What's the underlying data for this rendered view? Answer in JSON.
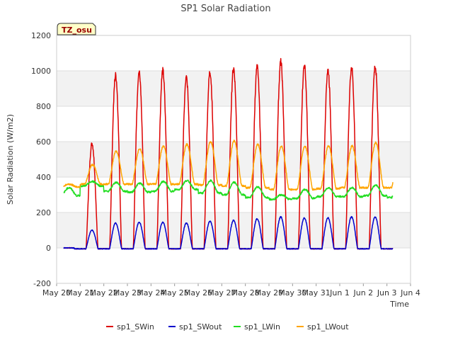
{
  "chart_data": {
    "type": "line",
    "title": "SP1 Solar Radiation",
    "xlabel": "Time",
    "ylabel": "Solar Radiation (W/m2)",
    "ylim": [
      -200,
      1200
    ],
    "yticks": [
      -200,
      0,
      200,
      400,
      600,
      800,
      1000,
      1200
    ],
    "xlim": [
      0,
      15
    ],
    "xticks": [
      0,
      1,
      2,
      3,
      4,
      5,
      6,
      7,
      8,
      9,
      10,
      11,
      12,
      13,
      14,
      15
    ],
    "xtick_labels": [
      "May 20",
      "May 21",
      "May 22",
      "May 23",
      "May 24",
      "May 25",
      "May 26",
      "May 27",
      "May 28",
      "May 29",
      "May 30",
      "May 31",
      "Jun 1",
      "Jun 2",
      "Jun 3",
      "Jun 4"
    ],
    "grid": true,
    "legend_position": "bottom",
    "annotation": "TZ_osu",
    "days": [
      "May 20",
      "May 21",
      "May 22",
      "May 23",
      "May 24",
      "May 25",
      "May 26",
      "May 27",
      "May 28",
      "May 29",
      "May 30",
      "May 31",
      "Jun 1",
      "Jun 2",
      "Jun 3"
    ],
    "series": [
      {
        "name": "sp1_SWin",
        "color": "#dd0000",
        "daily_peak": [
          0,
          590,
          975,
          995,
          1000,
          960,
          995,
          1015,
          1020,
          1050,
          1030,
          1005,
          1020,
          1030,
          1005
        ],
        "night_value": -5
      },
      {
        "name": "sp1_SWout",
        "color": "#0000cc",
        "daily_peak": [
          0,
          100,
          140,
          145,
          145,
          140,
          150,
          155,
          165,
          175,
          170,
          170,
          175,
          175,
          175
        ],
        "night_value": -5
      },
      {
        "name": "sp1_LWin",
        "color": "#22dd22",
        "daily_peak": [
          340,
          375,
          370,
          365,
          375,
          380,
          380,
          370,
          345,
          300,
          330,
          340,
          340,
          355,
          350
        ],
        "night_value": [
          295,
          350,
          320,
          315,
          320,
          330,
          310,
          300,
          285,
          275,
          280,
          290,
          290,
          295,
          285
        ]
      },
      {
        "name": "sp1_LWout",
        "color": "#ffa500",
        "daily_peak": [
          360,
          470,
          545,
          560,
          575,
          585,
          600,
          605,
          585,
          575,
          575,
          575,
          575,
          595,
          575
        ],
        "night_value": [
          345,
          360,
          360,
          360,
          360,
          360,
          355,
          350,
          340,
          330,
          330,
          335,
          340,
          340,
          340
        ]
      }
    ]
  }
}
